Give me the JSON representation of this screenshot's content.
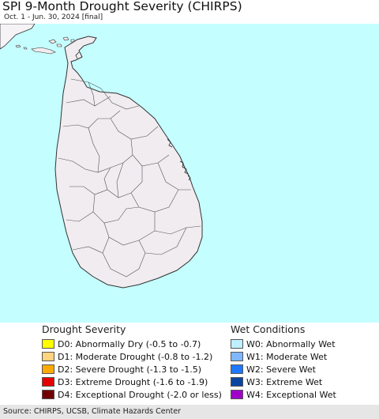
{
  "header": {
    "title": "SPI 9-Month Drought Severity (CHIRPS)",
    "subtitle": "Oct. 1 - Jun. 30, 2024 [final]"
  },
  "map": {
    "ocean_color": "#c4feff",
    "land_color": "#f0ecf0",
    "neighbor_color": "#f6f3f6",
    "border_color": "#333333"
  },
  "legend": {
    "drought": {
      "heading": "Drought Severity",
      "items": [
        {
          "label": "D0: Abnormally Dry (-0.5 to -0.7)",
          "color": "#ffff00"
        },
        {
          "label": "D1: Moderate Drought (-0.8 to -1.2)",
          "color": "#ffd37f"
        },
        {
          "label": "D2: Severe Drought (-1.3 to -1.5)",
          "color": "#ffaa00"
        },
        {
          "label": "D3: Extreme Drought (-1.6 to -1.9)",
          "color": "#e60000"
        },
        {
          "label": "D4: Exceptional Drought (-2.0 or less)",
          "color": "#730000"
        }
      ]
    },
    "wet": {
      "heading": "Wet Conditions",
      "items": [
        {
          "label": "W0: Abnormally Wet",
          "color": "#c0f0ff"
        },
        {
          "label": "W1: Moderate Wet",
          "color": "#7fb8ff"
        },
        {
          "label": "W2: Severe Wet",
          "color": "#1e78ff"
        },
        {
          "label": "W3: Extreme Wet",
          "color": "#0a46a0"
        },
        {
          "label": "W4: Exceptional Wet",
          "color": "#a000c8"
        }
      ]
    }
  },
  "footer": {
    "source": "Source: CHIRPS, UCSB, Climate Hazards Center"
  }
}
